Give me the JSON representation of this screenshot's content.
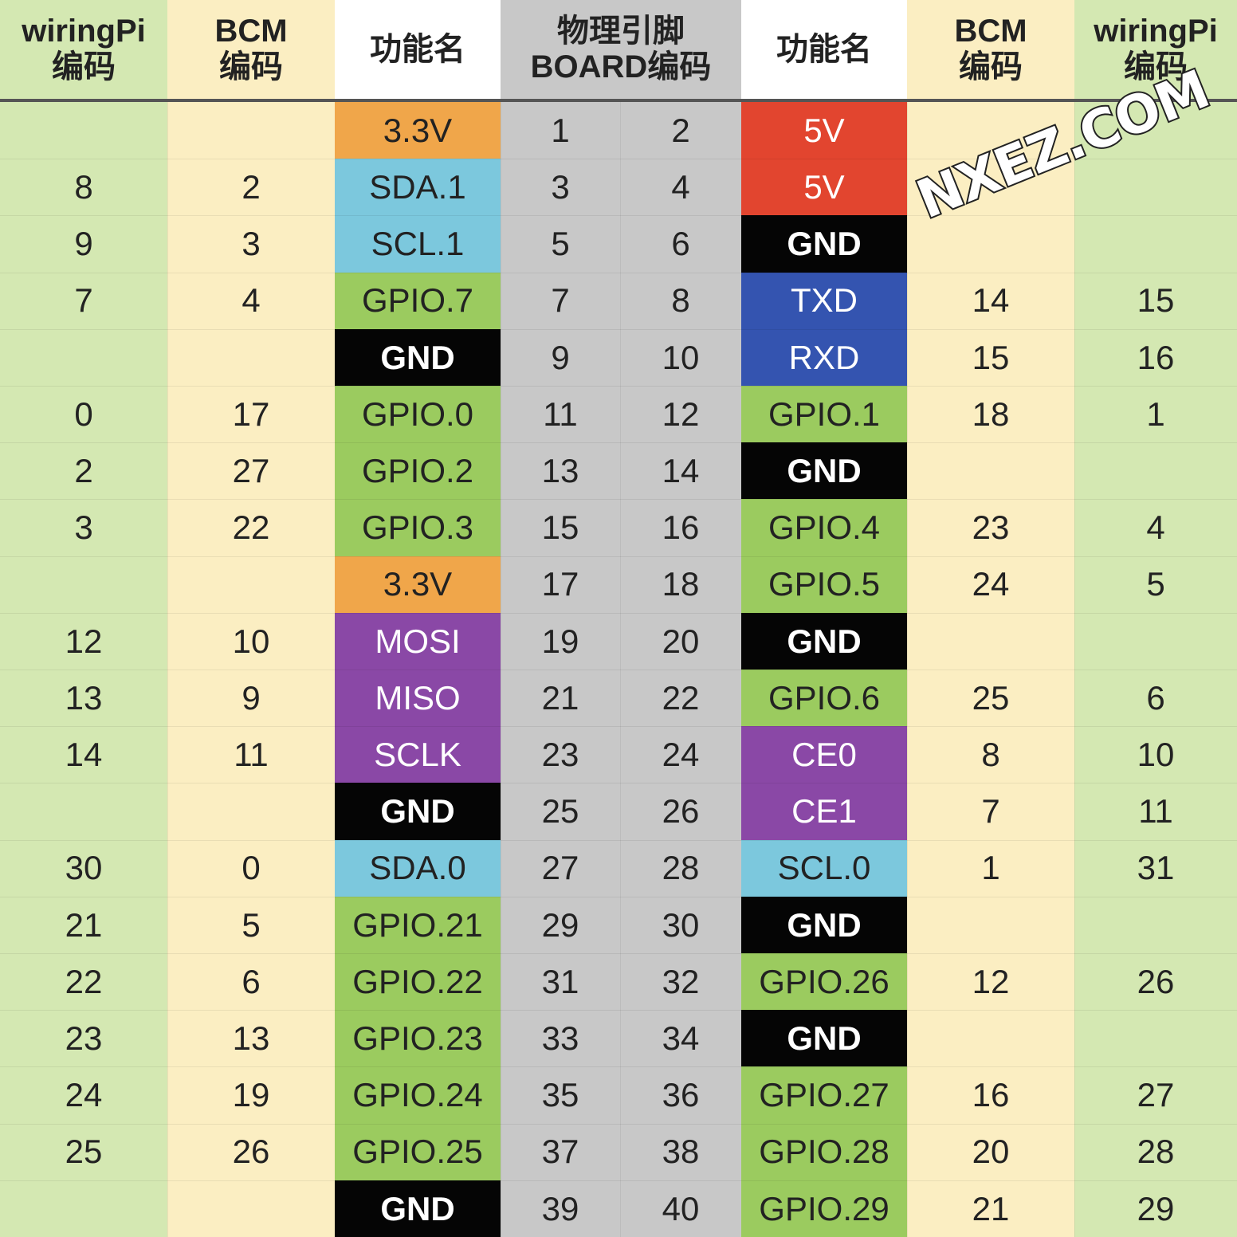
{
  "headers": {
    "wiringpi_left": [
      "wiringPi",
      "编码"
    ],
    "bcm_left": [
      "BCM",
      "编码"
    ],
    "func_left": [
      "功能名"
    ],
    "board": [
      "物理引脚",
      "BOARD编码"
    ],
    "func_right": [
      "功能名"
    ],
    "bcm_right": [
      "BCM",
      "编码"
    ],
    "wiringpi_right": [
      "wiringPi",
      "编码"
    ]
  },
  "watermark": "NXEZ.COM",
  "colors": {
    "wiringpi": "#d4e8b2",
    "bcm": "#fbeec2",
    "header_func": "#ffffff",
    "board": "#c8c8c8",
    "power_3v3": "#f0a64a",
    "power_5v": "#e2452f",
    "ground": "#050505",
    "i2c": "#7cc8dd",
    "gpio": "#9bcb5f",
    "uart": "#3454b0",
    "spi": "#8a48a6",
    "light_text": "#ffffff",
    "dark_text": "#222222"
  },
  "rows": [
    {
      "wp_l": "",
      "bcm_l": "",
      "func_l": "3.3V",
      "type_l": "power_3v3",
      "pin_l": "1",
      "pin_r": "2",
      "func_r": "5V",
      "type_r": "power_5v",
      "bcm_r": "",
      "wp_r": ""
    },
    {
      "wp_l": "8",
      "bcm_l": "2",
      "func_l": "SDA.1",
      "type_l": "i2c",
      "pin_l": "3",
      "pin_r": "4",
      "func_r": "5V",
      "type_r": "power_5v",
      "bcm_r": "",
      "wp_r": ""
    },
    {
      "wp_l": "9",
      "bcm_l": "3",
      "func_l": "SCL.1",
      "type_l": "i2c",
      "pin_l": "5",
      "pin_r": "6",
      "func_r": "GND",
      "type_r": "ground",
      "bcm_r": "",
      "wp_r": ""
    },
    {
      "wp_l": "7",
      "bcm_l": "4",
      "func_l": "GPIO.7",
      "type_l": "gpio",
      "pin_l": "7",
      "pin_r": "8",
      "func_r": "TXD",
      "type_r": "uart",
      "bcm_r": "14",
      "wp_r": "15"
    },
    {
      "wp_l": "",
      "bcm_l": "",
      "func_l": "GND",
      "type_l": "ground",
      "pin_l": "9",
      "pin_r": "10",
      "func_r": "RXD",
      "type_r": "uart",
      "bcm_r": "15",
      "wp_r": "16"
    },
    {
      "wp_l": "0",
      "bcm_l": "17",
      "func_l": "GPIO.0",
      "type_l": "gpio",
      "pin_l": "11",
      "pin_r": "12",
      "func_r": "GPIO.1",
      "type_r": "gpio",
      "bcm_r": "18",
      "wp_r": "1"
    },
    {
      "wp_l": "2",
      "bcm_l": "27",
      "func_l": "GPIO.2",
      "type_l": "gpio",
      "pin_l": "13",
      "pin_r": "14",
      "func_r": "GND",
      "type_r": "ground",
      "bcm_r": "",
      "wp_r": ""
    },
    {
      "wp_l": "3",
      "bcm_l": "22",
      "func_l": "GPIO.3",
      "type_l": "gpio",
      "pin_l": "15",
      "pin_r": "16",
      "func_r": "GPIO.4",
      "type_r": "gpio",
      "bcm_r": "23",
      "wp_r": "4"
    },
    {
      "wp_l": "",
      "bcm_l": "",
      "func_l": "3.3V",
      "type_l": "power_3v3",
      "pin_l": "17",
      "pin_r": "18",
      "func_r": "GPIO.5",
      "type_r": "gpio",
      "bcm_r": "24",
      "wp_r": "5"
    },
    {
      "wp_l": "12",
      "bcm_l": "10",
      "func_l": "MOSI",
      "type_l": "spi",
      "pin_l": "19",
      "pin_r": "20",
      "func_r": "GND",
      "type_r": "ground",
      "bcm_r": "",
      "wp_r": ""
    },
    {
      "wp_l": "13",
      "bcm_l": "9",
      "func_l": "MISO",
      "type_l": "spi",
      "pin_l": "21",
      "pin_r": "22",
      "func_r": "GPIO.6",
      "type_r": "gpio",
      "bcm_r": "25",
      "wp_r": "6"
    },
    {
      "wp_l": "14",
      "bcm_l": "11",
      "func_l": "SCLK",
      "type_l": "spi",
      "pin_l": "23",
      "pin_r": "24",
      "func_r": "CE0",
      "type_r": "spi",
      "bcm_r": "8",
      "wp_r": "10"
    },
    {
      "wp_l": "",
      "bcm_l": "",
      "func_l": "GND",
      "type_l": "ground",
      "pin_l": "25",
      "pin_r": "26",
      "func_r": "CE1",
      "type_r": "spi",
      "bcm_r": "7",
      "wp_r": "11"
    },
    {
      "wp_l": "30",
      "bcm_l": "0",
      "func_l": "SDA.0",
      "type_l": "i2c",
      "pin_l": "27",
      "pin_r": "28",
      "func_r": "SCL.0",
      "type_r": "i2c",
      "bcm_r": "1",
      "wp_r": "31"
    },
    {
      "wp_l": "21",
      "bcm_l": "5",
      "func_l": "GPIO.21",
      "type_l": "gpio",
      "pin_l": "29",
      "pin_r": "30",
      "func_r": "GND",
      "type_r": "ground",
      "bcm_r": "",
      "wp_r": ""
    },
    {
      "wp_l": "22",
      "bcm_l": "6",
      "func_l": "GPIO.22",
      "type_l": "gpio",
      "pin_l": "31",
      "pin_r": "32",
      "func_r": "GPIO.26",
      "type_r": "gpio",
      "bcm_r": "12",
      "wp_r": "26"
    },
    {
      "wp_l": "23",
      "bcm_l": "13",
      "func_l": "GPIO.23",
      "type_l": "gpio",
      "pin_l": "33",
      "pin_r": "34",
      "func_r": "GND",
      "type_r": "ground",
      "bcm_r": "",
      "wp_r": ""
    },
    {
      "wp_l": "24",
      "bcm_l": "19",
      "func_l": "GPIO.24",
      "type_l": "gpio",
      "pin_l": "35",
      "pin_r": "36",
      "func_r": "GPIO.27",
      "type_r": "gpio",
      "bcm_r": "16",
      "wp_r": "27"
    },
    {
      "wp_l": "25",
      "bcm_l": "26",
      "func_l": "GPIO.25",
      "type_l": "gpio",
      "pin_l": "37",
      "pin_r": "38",
      "func_r": "GPIO.28",
      "type_r": "gpio",
      "bcm_r": "20",
      "wp_r": "28"
    },
    {
      "wp_l": "",
      "bcm_l": "",
      "func_l": "GND",
      "type_l": "ground",
      "pin_l": "39",
      "pin_r": "40",
      "func_r": "GPIO.29",
      "type_r": "gpio",
      "bcm_r": "21",
      "wp_r": "29"
    }
  ]
}
